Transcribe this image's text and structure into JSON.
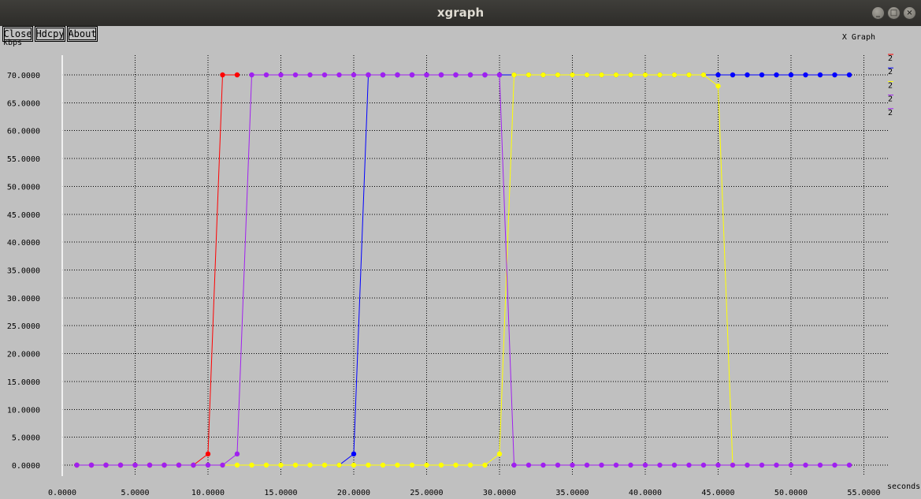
{
  "window": {
    "title": "xgraph",
    "controls": {
      "minimize": "_",
      "maximize": "□",
      "close": "×"
    }
  },
  "toolbar": {
    "close_label": "Close",
    "hdcpy_label": "Hdcpy",
    "about_label": "About"
  },
  "chart_data": {
    "type": "line",
    "title": "X Graph",
    "xlabel": "seconds",
    "ylabel": "kbps",
    "xlim": [
      0,
      55
    ],
    "ylim": [
      0,
      70
    ],
    "grid": true,
    "markers": true,
    "xticks": [
      0,
      5,
      10,
      15,
      20,
      25,
      30,
      35,
      40,
      45,
      50,
      55
    ],
    "yticks": [
      0,
      5,
      10,
      15,
      20,
      25,
      30,
      35,
      40,
      45,
      50,
      55,
      60,
      65,
      70
    ],
    "xtick_labels": [
      "0.0000",
      "5.0000",
      "10.0000",
      "15.0000",
      "20.0000",
      "25.0000",
      "30.0000",
      "35.0000",
      "40.0000",
      "45.0000",
      "50.0000",
      "55.0000"
    ],
    "ytick_labels": [
      "0.0000",
      "5.0000",
      "10.0000",
      "15.0000",
      "20.0000",
      "25.0000",
      "30.0000",
      "35.0000",
      "40.0000",
      "45.0000",
      "50.0000",
      "55.0000",
      "60.0000",
      "65.0000",
      "70.0000"
    ],
    "legend_position": "top-right",
    "series": [
      {
        "name": "2",
        "color": "#ff0000",
        "x": [
          1,
          2,
          3,
          4,
          5,
          6,
          7,
          8,
          9,
          10,
          11,
          12
        ],
        "y": [
          0,
          0,
          0,
          0,
          0,
          0,
          0,
          0,
          0,
          2,
          70,
          70
        ]
      },
      {
        "name": "2",
        "color": "#0000ff",
        "x": [
          19,
          20,
          21,
          22,
          23,
          24,
          25,
          26,
          27,
          28,
          29,
          30,
          31,
          32,
          33,
          34,
          35,
          36,
          37,
          38,
          39,
          40,
          41,
          42,
          43,
          44,
          45,
          46,
          47,
          48,
          49,
          50,
          51,
          52,
          53,
          54
        ],
        "y": [
          0,
          2,
          70,
          70,
          70,
          70,
          70,
          70,
          70,
          70,
          70,
          70,
          70,
          70,
          70,
          70,
          70,
          70,
          70,
          70,
          70,
          70,
          70,
          70,
          70,
          70,
          70,
          70,
          70,
          70,
          70,
          70,
          70,
          70,
          70,
          70
        ]
      },
      {
        "name": "2",
        "color": "#ffff00",
        "x": [
          11,
          12,
          13,
          14,
          15,
          16,
          17,
          18,
          19,
          20,
          21,
          22,
          23,
          24,
          25,
          26,
          27,
          28,
          29,
          30,
          31,
          32,
          33,
          34,
          35,
          36,
          37,
          38,
          39,
          40,
          41,
          42,
          43,
          44,
          45,
          46
        ],
        "y": [
          0,
          0,
          0,
          0,
          0,
          0,
          0,
          0,
          0,
          0,
          0,
          0,
          0,
          0,
          0,
          0,
          0,
          0,
          0,
          2,
          70,
          70,
          70,
          70,
          70,
          70,
          70,
          70,
          70,
          70,
          70,
          70,
          70,
          70,
          68,
          0
        ]
      },
      {
        "name": "2",
        "color": "#a020f0",
        "x": [
          1,
          2,
          3,
          4,
          5,
          6,
          7,
          8,
          9,
          10,
          11,
          12,
          13,
          14,
          15,
          16,
          17,
          18,
          19,
          20,
          21,
          22,
          23,
          24,
          25,
          26,
          27,
          28,
          29,
          30,
          31,
          32,
          33,
          34,
          35,
          36,
          37,
          38,
          39,
          40,
          41,
          42,
          43,
          44,
          45,
          46,
          47,
          48,
          49,
          50,
          51,
          52,
          53,
          54
        ],
        "y": [
          0,
          0,
          0,
          0,
          0,
          0,
          0,
          0,
          0,
          0,
          0,
          2,
          70,
          70,
          70,
          70,
          70,
          70,
          70,
          70,
          70,
          70,
          70,
          70,
          70,
          70,
          70,
          70,
          70,
          70,
          0,
          0,
          0,
          0,
          0,
          0,
          0,
          0,
          0,
          0,
          0,
          0,
          0,
          0,
          0,
          0,
          0,
          0,
          0,
          0,
          0,
          0,
          0,
          0
        ]
      },
      {
        "name": "2",
        "color": "#a020f0",
        "x": [],
        "y": []
      }
    ]
  }
}
